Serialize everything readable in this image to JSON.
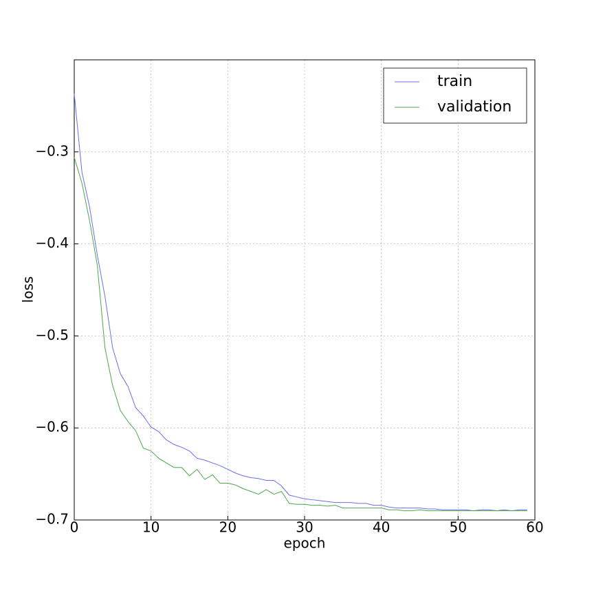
{
  "chart_data": {
    "type": "line",
    "x_label": "epoch",
    "y_label": "loss",
    "x": [
      0,
      1,
      2,
      3,
      4,
      5,
      6,
      7,
      8,
      9,
      10,
      11,
      12,
      13,
      14,
      15,
      16,
      17,
      18,
      19,
      20,
      21,
      22,
      23,
      24,
      25,
      26,
      27,
      28,
      29,
      30,
      31,
      32,
      33,
      34,
      35,
      36,
      37,
      38,
      39,
      40,
      41,
      42,
      43,
      44,
      45,
      46,
      47,
      48,
      49,
      50,
      51,
      52,
      53,
      54,
      55,
      56,
      57,
      58,
      59
    ],
    "series": [
      {
        "name": "train",
        "color": "#6b6bf0",
        "values": [
          -0.237,
          -0.322,
          -0.36,
          -0.412,
          -0.457,
          -0.513,
          -0.541,
          -0.555,
          -0.578,
          -0.587,
          -0.599,
          -0.604,
          -0.613,
          -0.618,
          -0.621,
          -0.625,
          -0.633,
          -0.635,
          -0.638,
          -0.641,
          -0.645,
          -0.649,
          -0.652,
          -0.654,
          -0.655,
          -0.657,
          -0.657,
          -0.663,
          -0.673,
          -0.675,
          -0.677,
          -0.678,
          -0.679,
          -0.68,
          -0.681,
          -0.681,
          -0.681,
          -0.682,
          -0.682,
          -0.684,
          -0.684,
          -0.686,
          -0.687,
          -0.687,
          -0.687,
          -0.687,
          -0.688,
          -0.688,
          -0.689,
          -0.689,
          -0.689,
          -0.689,
          -0.69,
          -0.689,
          -0.689,
          -0.69,
          -0.689,
          -0.69,
          -0.689,
          -0.689
        ]
      },
      {
        "name": "validation",
        "color": "#4ca64c",
        "values": [
          -0.306,
          -0.334,
          -0.375,
          -0.423,
          -0.513,
          -0.554,
          -0.581,
          -0.593,
          -0.603,
          -0.622,
          -0.625,
          -0.633,
          -0.638,
          -0.643,
          -0.643,
          -0.652,
          -0.645,
          -0.656,
          -0.651,
          -0.66,
          -0.66,
          -0.662,
          -0.666,
          -0.669,
          -0.672,
          -0.667,
          -0.672,
          -0.669,
          -0.682,
          -0.683,
          -0.683,
          -0.684,
          -0.684,
          -0.685,
          -0.684,
          -0.687,
          -0.687,
          -0.687,
          -0.687,
          -0.687,
          -0.687,
          -0.689,
          -0.689,
          -0.69,
          -0.69,
          -0.689,
          -0.69,
          -0.69,
          -0.69,
          -0.69,
          -0.69,
          -0.69,
          -0.69,
          -0.69,
          -0.69,
          -0.69,
          -0.69,
          -0.69,
          -0.69,
          -0.69
        ]
      }
    ],
    "xlim": [
      0,
      60
    ],
    "xticks": [
      0,
      10,
      20,
      30,
      40,
      50,
      60
    ],
    "ylim": [
      -0.7,
      -0.2
    ],
    "yticks": [
      {
        "value": -0.7,
        "label": "−0.7"
      },
      {
        "value": -0.6,
        "label": "−0.6"
      },
      {
        "value": -0.5,
        "label": "−0.5"
      },
      {
        "value": -0.4,
        "label": "−0.4"
      },
      {
        "value": -0.3,
        "label": "−0.3"
      }
    ],
    "grid": true,
    "legend": "upper right"
  }
}
